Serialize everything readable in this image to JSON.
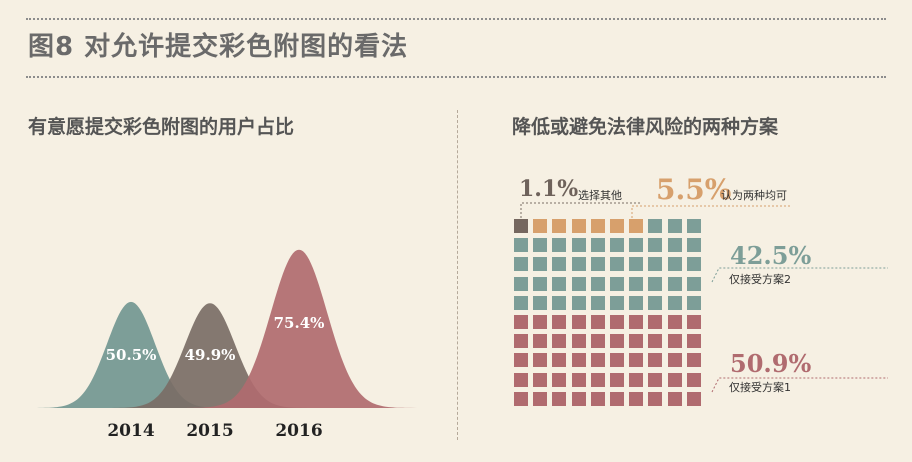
{
  "header": {
    "title": "图8  对允许提交彩色附图的看法"
  },
  "chart_data": [
    {
      "type": "area",
      "title": "有意愿提交彩色附图的用户占比",
      "categories": [
        "2014",
        "2015",
        "2016"
      ],
      "values": [
        50.5,
        49.9,
        75.4
      ],
      "labels": [
        "50.5%",
        "49.9%",
        "75.4%"
      ],
      "unit": "%",
      "colors": [
        "#7d9e98",
        "#7a6e66",
        "#b06b6f"
      ]
    },
    {
      "type": "waffle",
      "title": "降低或避免法律风险的两种方案",
      "grid": {
        "rows": 10,
        "cols": 10
      },
      "series": [
        {
          "name": "选择其他",
          "value": 1.1,
          "label": "1.1%",
          "color": "#75675f"
        },
        {
          "name": "认为两种均可",
          "value": 5.5,
          "label": "5.5%",
          "color": "#d7a06c"
        },
        {
          "name": "仅接受方案2",
          "value": 42.5,
          "label": "42.5%",
          "color": "#7d9e98"
        },
        {
          "name": "仅接受方案1",
          "value": 50.9,
          "label": "50.9%",
          "color": "#b06b6f"
        }
      ]
    }
  ]
}
